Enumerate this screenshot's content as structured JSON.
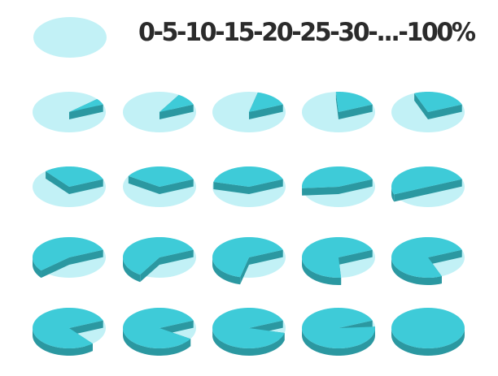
{
  "title": "0-5-10-15-20-25-30-...-100%",
  "colors": {
    "background": "#ffffff",
    "empty": "#c2f1f6",
    "fill_top": "#3ecbd8",
    "fill_side": "#2b98a1",
    "title_text": "#2b2b2b"
  },
  "chart_data": {
    "type": "pie",
    "legend_sample": "empty disc (0%)",
    "grid_layout": "5 columns x 4 rows",
    "percentages": [
      5,
      10,
      15,
      20,
      25,
      30,
      35,
      40,
      45,
      50,
      55,
      60,
      65,
      70,
      75,
      80,
      85,
      90,
      95,
      100
    ]
  }
}
